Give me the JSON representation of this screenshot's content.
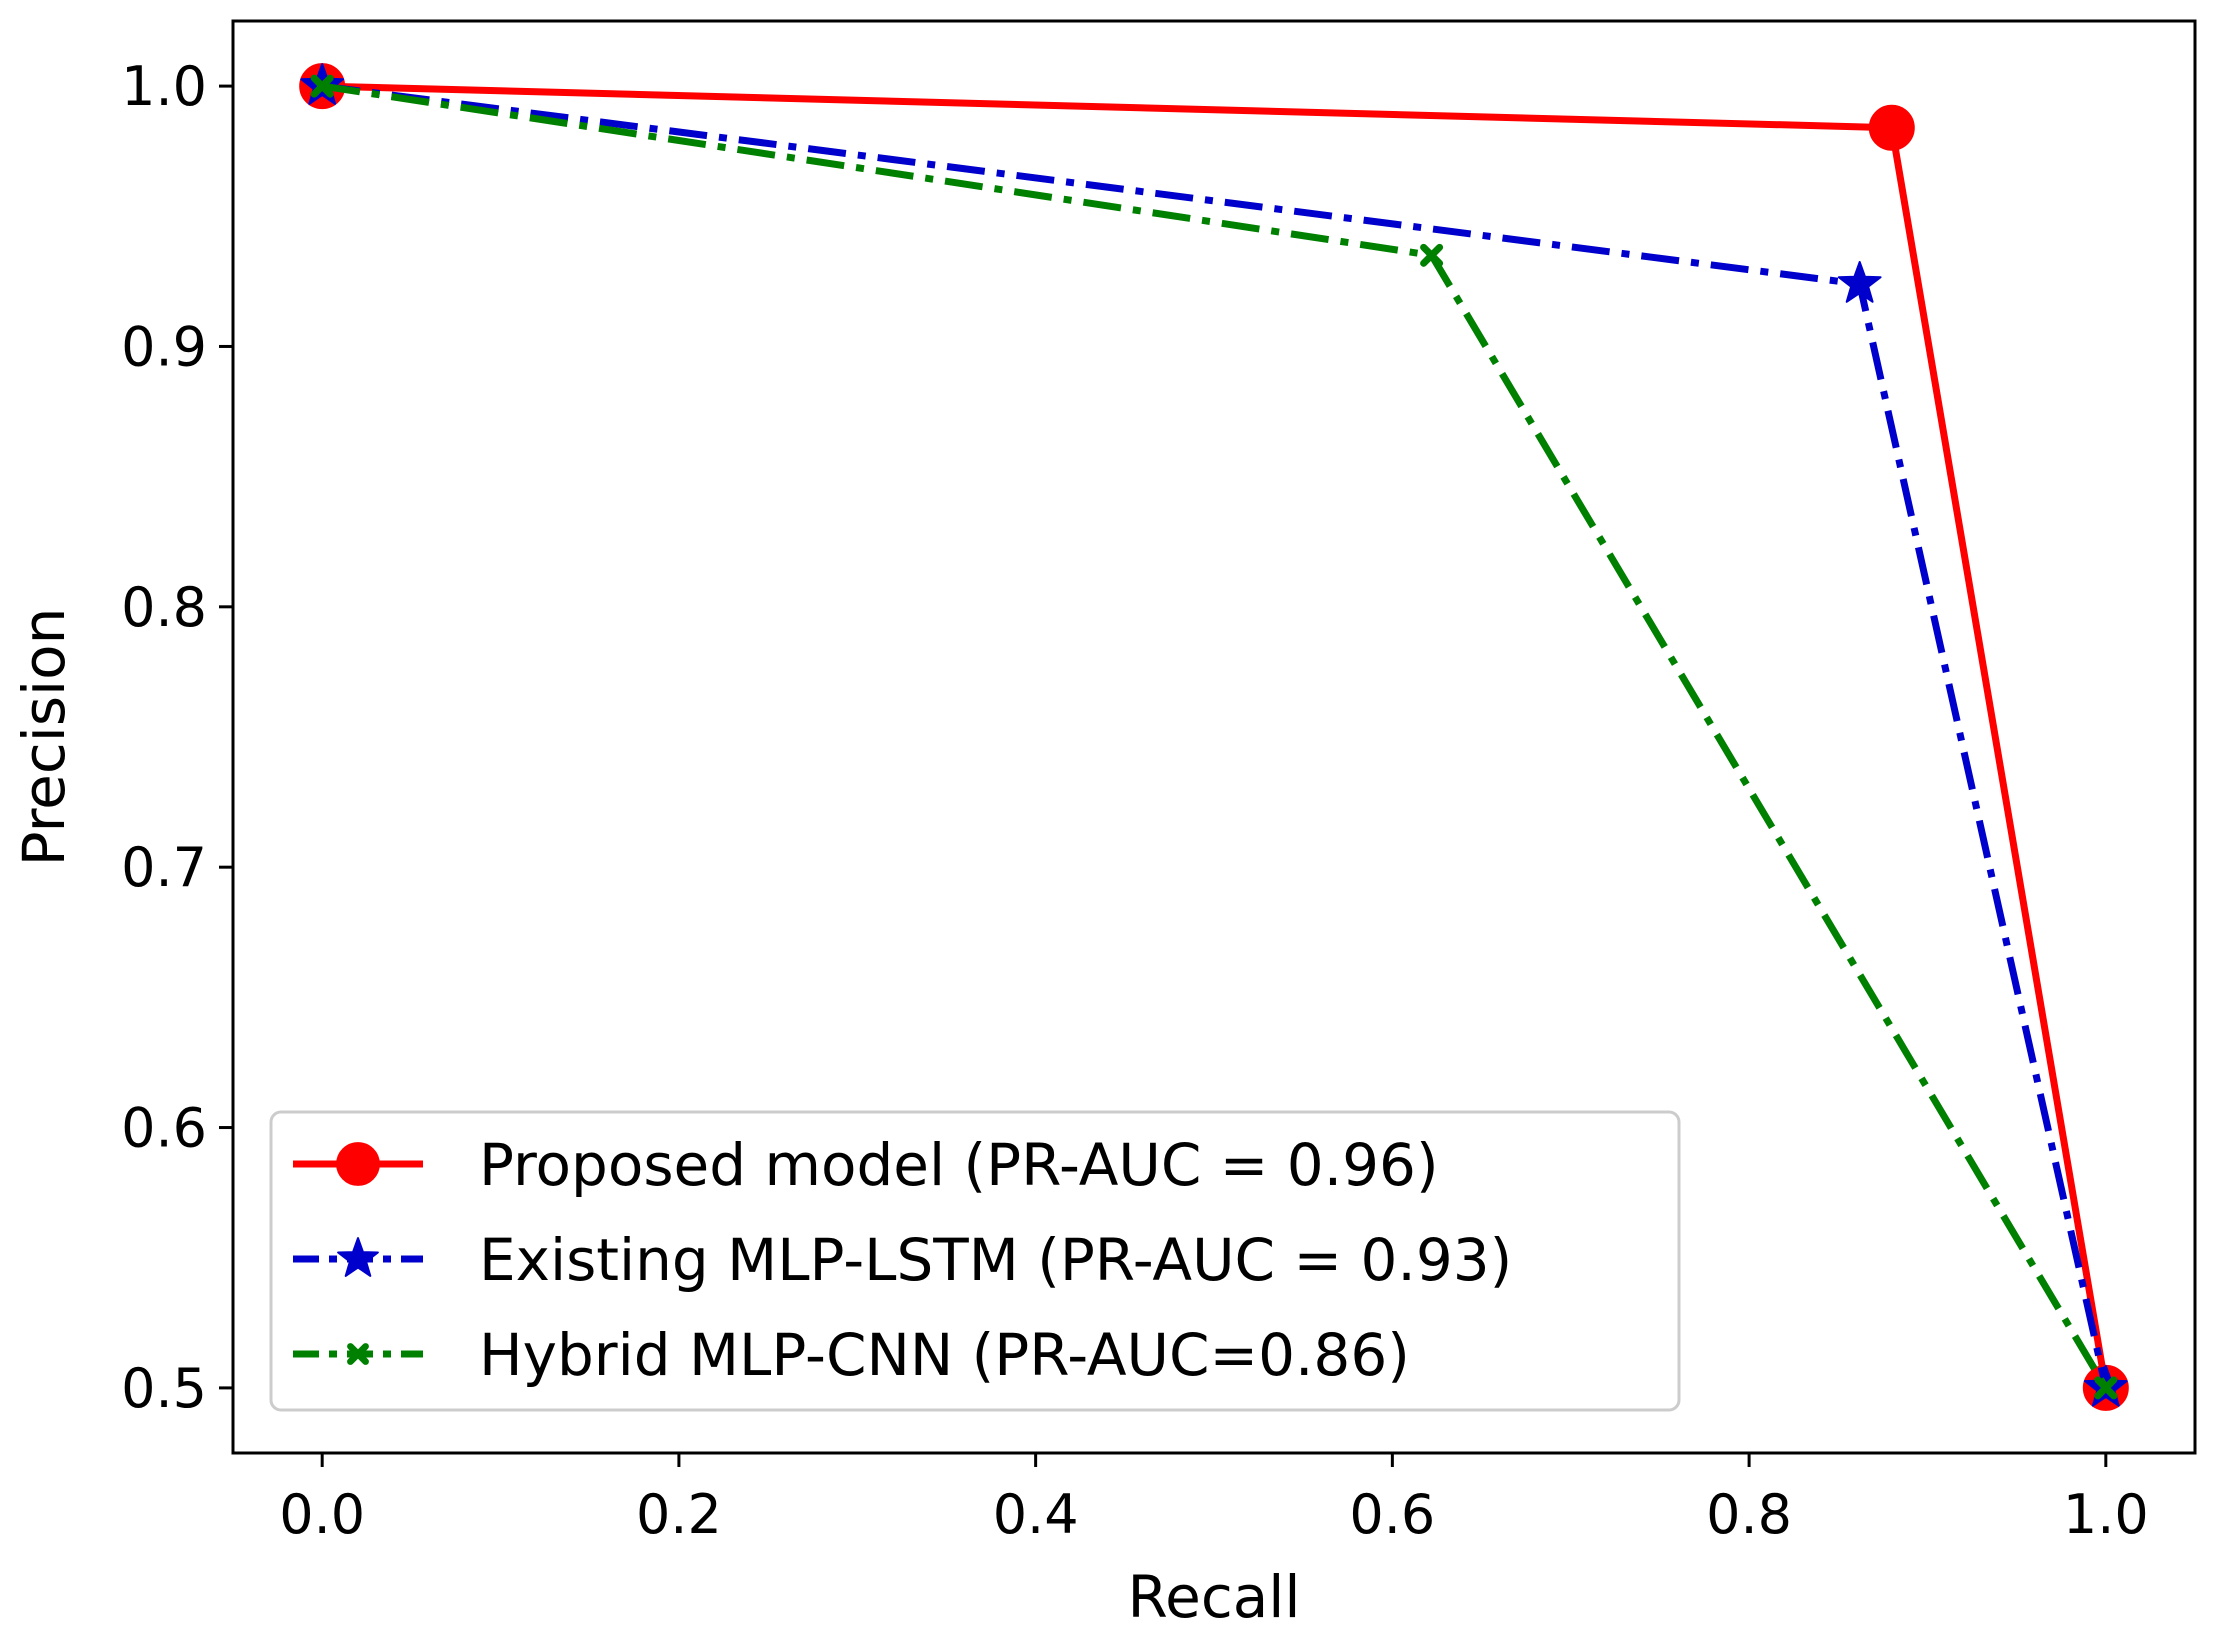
{
  "chart_data": {
    "type": "line",
    "title": "",
    "xlabel": "Recall",
    "ylabel": "Precision",
    "xlim": [
      -0.05,
      1.05
    ],
    "ylim": [
      0.475,
      1.025
    ],
    "xticks": [
      0.0,
      0.2,
      0.4,
      0.6,
      0.8,
      1.0
    ],
    "yticks": [
      0.5,
      0.6,
      0.7,
      0.8,
      0.9,
      1.0
    ],
    "xtick_labels": [
      "0.0",
      "0.2",
      "0.4",
      "0.6",
      "0.8",
      "1.0"
    ],
    "ytick_labels": [
      "0.5",
      "0.6",
      "0.7",
      "0.8",
      "0.9",
      "1.0"
    ],
    "grid": false,
    "legend_position": "lower-left",
    "series": [
      {
        "name": "Proposed model (PR-AUC = 0.96)",
        "color": "#ff0000",
        "line_style": "solid",
        "marker": "circle",
        "x": [
          0.0,
          0.88,
          1.0
        ],
        "y": [
          1.0,
          0.984,
          0.5
        ]
      },
      {
        "name": "Existing MLP-LSTM (PR-AUC = 0.93)",
        "color": "#0000cc",
        "line_style": "dashdot",
        "marker": "star",
        "x": [
          0.0,
          0.862,
          1.0
        ],
        "y": [
          1.0,
          0.924,
          0.5
        ]
      },
      {
        "name": "Hybrid MLP-CNN (PR-AUC=0.86)",
        "color": "#008000",
        "line_style": "dashdot",
        "marker": "x",
        "x": [
          0.0,
          0.622,
          1.0
        ],
        "y": [
          1.0,
          0.935,
          0.5
        ]
      }
    ]
  }
}
